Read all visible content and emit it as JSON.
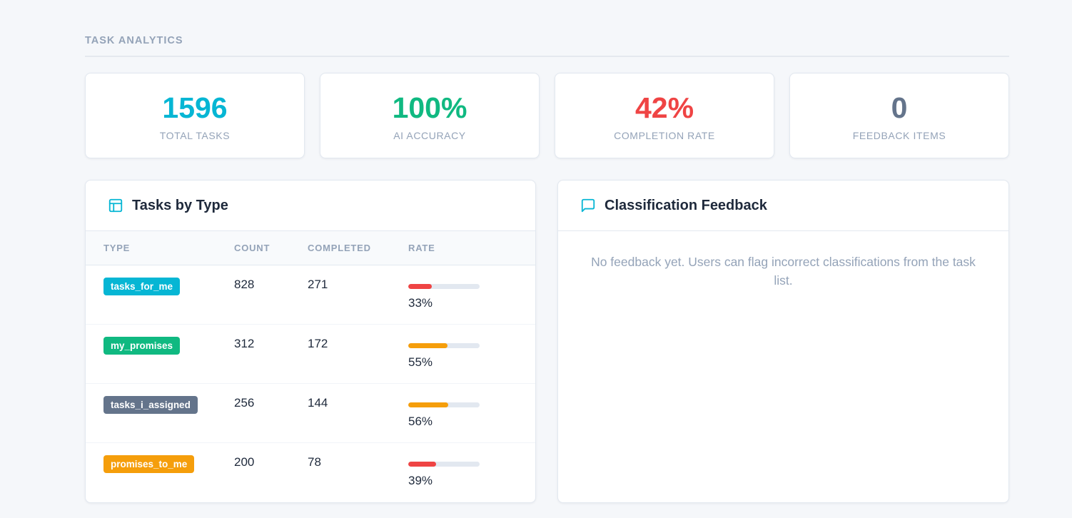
{
  "section": {
    "title": "TASK ANALYTICS"
  },
  "stats": [
    {
      "value": "1596",
      "label": "TOTAL TASKS",
      "color": "#06b6d4"
    },
    {
      "value": "100%",
      "label": "AI ACCURACY",
      "color": "#10b981"
    },
    {
      "value": "42%",
      "label": "COMPLETION RATE",
      "color": "#ef4444"
    },
    {
      "value": "0",
      "label": "FEEDBACK ITEMS",
      "color": "#64748b"
    }
  ],
  "tasks_panel": {
    "title": "Tasks by Type",
    "icon": "table-icon",
    "columns": [
      "TYPE",
      "COUNT",
      "COMPLETED",
      "RATE"
    ],
    "rows": [
      {
        "type": "tasks_for_me",
        "badge_color": "#06b6d4",
        "count": "828",
        "completed": "271",
        "rate": "33%",
        "rate_value": 0.33,
        "bar_color": "#ef4444"
      },
      {
        "type": "my_promises",
        "badge_color": "#10b981",
        "count": "312",
        "completed": "172",
        "rate": "55%",
        "rate_value": 0.55,
        "bar_color": "#f59e0b"
      },
      {
        "type": "tasks_i_assigned",
        "badge_color": "#64748b",
        "count": "256",
        "completed": "144",
        "rate": "56%",
        "rate_value": 0.56,
        "bar_color": "#f59e0b"
      },
      {
        "type": "promises_to_me",
        "badge_color": "#f59e0b",
        "count": "200",
        "completed": "78",
        "rate": "39%",
        "rate_value": 0.39,
        "bar_color": "#ef4444"
      }
    ]
  },
  "feedback_panel": {
    "title": "Classification Feedback",
    "icon": "message-icon",
    "empty_text": "No feedback yet. Users can flag incorrect classifications from the task list."
  }
}
